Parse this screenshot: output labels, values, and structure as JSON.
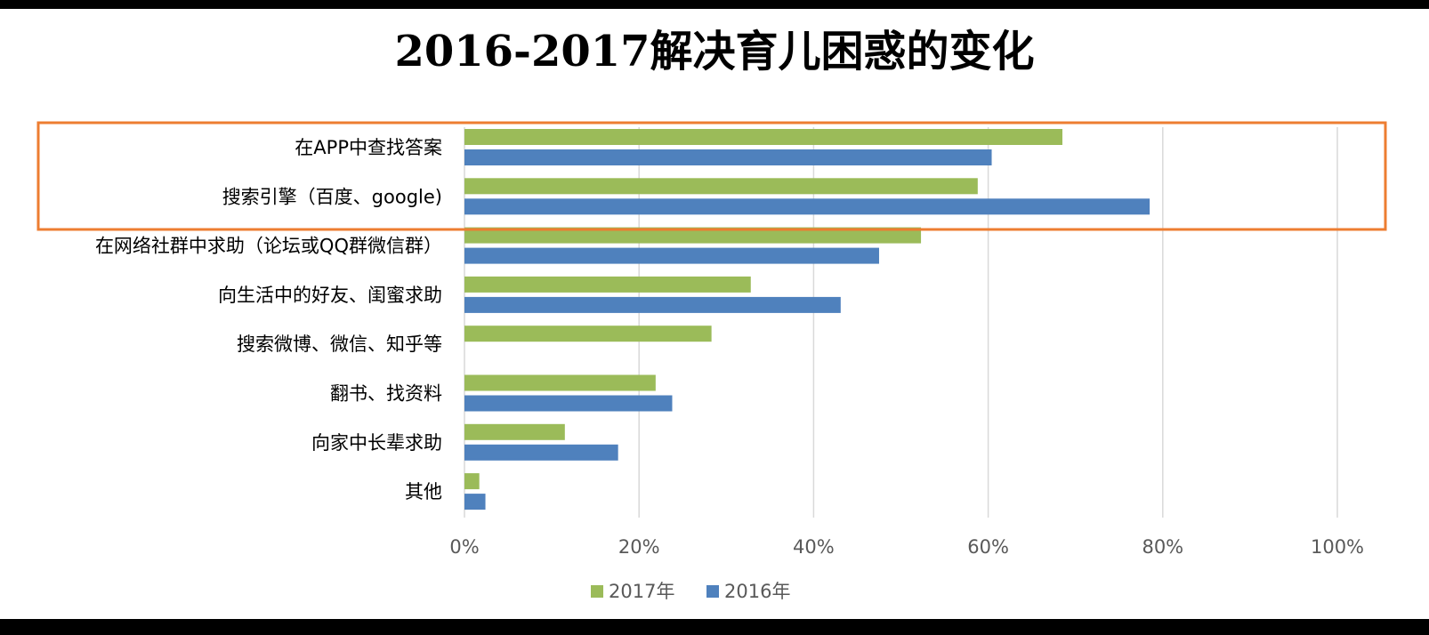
{
  "chart_data": {
    "type": "bar",
    "orientation": "horizontal",
    "title": "2016-2017解决育儿困惑的变化",
    "categories": [
      "在APP中查找答案",
      "搜索引擎（百度、google)",
      "在网络社群中求助（论坛或QQ群微信群）",
      "向生活中的好友、闺蜜求助",
      "搜索微博、微信、知乎等",
      "翻书、找资料",
      "向家中长辈求助",
      "其他"
    ],
    "series": [
      {
        "name": "2017年",
        "color": "#9BBB59",
        "values": [
          0.685,
          0.588,
          0.523,
          0.328,
          0.283,
          0.219,
          0.115,
          0.017
        ]
      },
      {
        "name": "2016年",
        "color": "#4F81BD",
        "values": [
          0.604,
          0.785,
          0.475,
          0.431,
          null,
          0.238,
          0.176,
          0.024
        ]
      }
    ],
    "xlim": [
      0,
      1
    ],
    "xticks": [
      "0%",
      "20%",
      "40%",
      "60%",
      "80%",
      "100%"
    ],
    "grid": true,
    "legend_position": "bottom",
    "highlight": {
      "categories": [
        "在APP中查找答案",
        "搜索引擎（百度、google)"
      ],
      "color": "#ED7D31"
    }
  }
}
